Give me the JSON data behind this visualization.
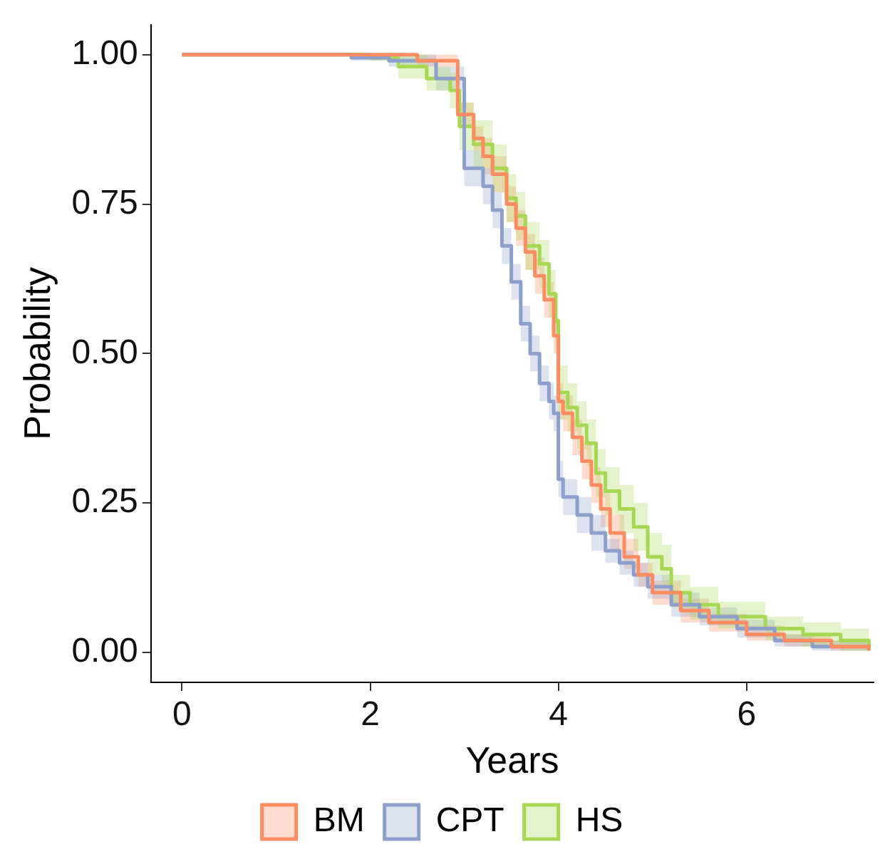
{
  "chart_data": {
    "type": "step",
    "xlabel": "Years",
    "ylabel": "Probability",
    "xlim": [
      -0.33,
      7.35
    ],
    "ylim": [
      -0.05,
      1.05
    ],
    "xticks": [
      0,
      2,
      4,
      6
    ],
    "yticks": [
      {
        "value": 0,
        "label": "0.00"
      },
      {
        "value": 0.25,
        "label": "0.25"
      },
      {
        "value": 0.5,
        "label": "0.50"
      },
      {
        "value": 0.75,
        "label": "0.75"
      },
      {
        "value": 1,
        "label": "1.00"
      }
    ],
    "grid": false,
    "legend": "bottom",
    "marker": "none",
    "line_style": "solid",
    "series": [
      {
        "name": "BM",
        "color": "#fc8d62",
        "x": [
          0,
          2.5,
          2.93,
          3.1,
          3.2,
          3.3,
          3.45,
          3.55,
          3.65,
          3.75,
          3.85,
          3.95,
          4.0,
          4.05,
          4.15,
          4.25,
          4.35,
          4.45,
          4.55,
          4.7,
          4.85,
          5.0,
          5.3,
          5.6,
          6.0,
          6.4,
          6.9,
          7.3
        ],
        "values": [
          1,
          0.99,
          0.9,
          0.86,
          0.83,
          0.8,
          0.75,
          0.71,
          0.67,
          0.63,
          0.59,
          0.53,
          0.42,
          0.4,
          0.36,
          0.32,
          0.28,
          0.24,
          0.2,
          0.16,
          0.13,
          0.1,
          0.07,
          0.05,
          0.03,
          0.02,
          0.01,
          0.003
        ],
        "lower": [
          null,
          0.98,
          0.88,
          0.84,
          0.8,
          0.77,
          0.72,
          0.68,
          0.64,
          0.6,
          0.56,
          0.5,
          0.39,
          0.37,
          0.33,
          0.29,
          0.25,
          0.21,
          0.17,
          0.14,
          0.11,
          0.08,
          0.05,
          0.035,
          0.02,
          0.01,
          0.003,
          0
        ],
        "upper": [
          null,
          1,
          0.92,
          0.88,
          0.86,
          0.83,
          0.78,
          0.74,
          0.7,
          0.66,
          0.62,
          0.56,
          0.45,
          0.43,
          0.39,
          0.35,
          0.31,
          0.27,
          0.23,
          0.19,
          0.15,
          0.12,
          0.09,
          0.065,
          0.045,
          0.03,
          0.02,
          0.01
        ]
      },
      {
        "name": "CPT",
        "color": "#8da0cb",
        "x": [
          0,
          1.8,
          2.2,
          2.7,
          3.0,
          3.2,
          3.3,
          3.4,
          3.5,
          3.6,
          3.7,
          3.8,
          3.9,
          3.95,
          4.0,
          4.05,
          4.2,
          4.35,
          4.5,
          4.65,
          4.8,
          4.95,
          5.2,
          5.5,
          5.9,
          6.3,
          6.7,
          7.3
        ],
        "values": [
          1,
          0.995,
          0.99,
          0.96,
          0.81,
          0.78,
          0.74,
          0.68,
          0.62,
          0.55,
          0.5,
          0.45,
          0.42,
          0.4,
          0.29,
          0.26,
          0.23,
          0.2,
          0.17,
          0.15,
          0.13,
          0.11,
          0.08,
          0.06,
          0.04,
          0.02,
          0.01,
          0.005
        ],
        "lower": [
          null,
          0.99,
          0.98,
          0.94,
          0.78,
          0.75,
          0.71,
          0.65,
          0.59,
          0.52,
          0.47,
          0.42,
          0.39,
          0.37,
          0.26,
          0.23,
          0.2,
          0.17,
          0.15,
          0.13,
          0.11,
          0.09,
          0.06,
          0.045,
          0.025,
          0.01,
          0.003,
          0
        ],
        "upper": [
          null,
          1,
          1,
          0.98,
          0.84,
          0.81,
          0.77,
          0.71,
          0.65,
          0.58,
          0.53,
          0.48,
          0.45,
          0.43,
          0.32,
          0.29,
          0.26,
          0.23,
          0.19,
          0.17,
          0.15,
          0.13,
          0.1,
          0.075,
          0.055,
          0.03,
          0.02,
          0.015
        ]
      },
      {
        "name": "HS",
        "color": "#a6d854",
        "x": [
          0,
          2.0,
          2.3,
          2.6,
          2.85,
          2.95,
          3.1,
          3.3,
          3.45,
          3.55,
          3.65,
          3.8,
          3.9,
          3.97,
          4.0,
          4.1,
          4.2,
          4.3,
          4.4,
          4.5,
          4.65,
          4.8,
          4.95,
          5.1,
          5.2,
          5.4,
          5.7,
          6.2,
          6.6,
          7.0,
          7.3
        ],
        "values": [
          1,
          0.995,
          0.98,
          0.96,
          0.94,
          0.88,
          0.85,
          0.81,
          0.76,
          0.73,
          0.68,
          0.65,
          0.6,
          0.555,
          0.435,
          0.41,
          0.38,
          0.35,
          0.3,
          0.27,
          0.24,
          0.21,
          0.16,
          0.14,
          0.1,
          0.08,
          0.06,
          0.04,
          0.03,
          0.02,
          0.01
        ],
        "lower": [
          null,
          0.99,
          0.96,
          0.94,
          0.91,
          0.84,
          0.81,
          0.77,
          0.72,
          0.69,
          0.64,
          0.61,
          0.56,
          0.51,
          0.39,
          0.37,
          0.34,
          0.31,
          0.26,
          0.23,
          0.2,
          0.17,
          0.13,
          0.11,
          0.075,
          0.055,
          0.04,
          0.02,
          0.01,
          0.003,
          0
        ],
        "upper": [
          null,
          1,
          1,
          0.98,
          0.97,
          0.92,
          0.89,
          0.85,
          0.8,
          0.77,
          0.72,
          0.69,
          0.64,
          0.6,
          0.48,
          0.45,
          0.42,
          0.39,
          0.34,
          0.31,
          0.28,
          0.25,
          0.2,
          0.18,
          0.13,
          0.11,
          0.085,
          0.06,
          0.05,
          0.04,
          0.03
        ]
      }
    ]
  }
}
